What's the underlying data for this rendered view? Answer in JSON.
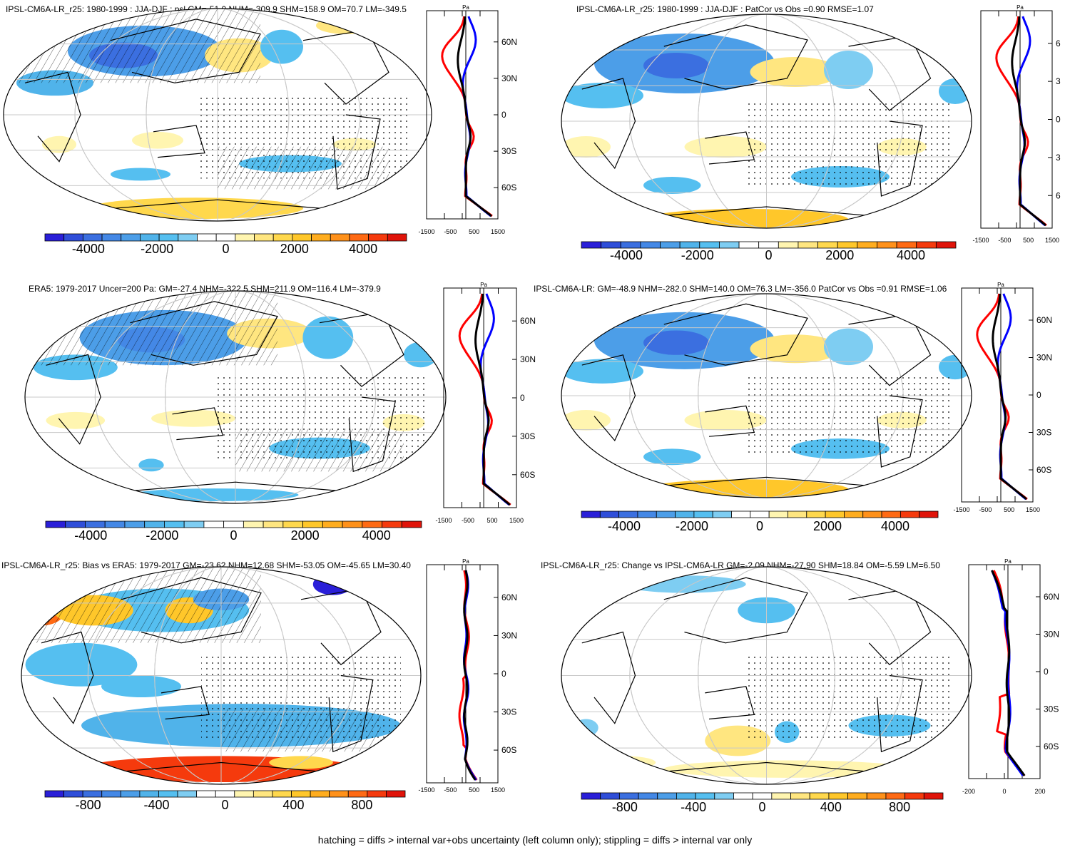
{
  "colors": {
    "neg": [
      "#2a1fd8",
      "#2f4ed9",
      "#3b6fe0",
      "#4488e6",
      "#4c9ee8",
      "#50b3ea",
      "#55bff0",
      "#7ecdf2"
    ],
    "pos": [
      "#fff5b0",
      "#ffe680",
      "#ffd84d",
      "#ffc72a",
      "#ffad1f",
      "#ff911a",
      "#ff6a14",
      "#f53a0d",
      "#e0140a"
    ],
    "nh_line": "#0000ff",
    "sh_line": "#ff0000",
    "global_line": "#000000"
  },
  "footer": "hatching = diffs > internal var+obs uncertainty (left column only); stippling = diffs > internal var only",
  "chart_data": [
    {
      "type": "map",
      "title": "IPSL-CM6A-LR_r25: 1980-1999 : JJA-DJF : psl GM=-51.0 NHM=-309.9 SHM=158.9 OM=70.7 LM=-349.5",
      "colorbar_ticks": [
        "-4000",
        "-2000",
        "0",
        "2000",
        "4000"
      ],
      "lat_labels": [
        "60N",
        "30N",
        "0",
        "30S",
        "60S"
      ],
      "profile_xticks": [
        "-1500",
        "-500",
        "500",
        "1500"
      ],
      "profile_unit": "Pa",
      "stats": {
        "GM": -51.0,
        "NHM": -309.9,
        "SHM": 158.9,
        "OM": 70.7,
        "LM": -349.5
      }
    },
    {
      "type": "map",
      "title": "IPSL-CM6A-LR_r25: 1980-1999 : JJA-DJF : PatCor vs Obs =0.90 RMSE=1.07",
      "colorbar_ticks": [
        "-4000",
        "-2000",
        "0",
        "2000",
        "4000"
      ],
      "lat_labels": [
        "6",
        "3",
        "0",
        "3",
        "6"
      ],
      "profile_xticks": [
        "-1500",
        "-500",
        "500",
        "1500"
      ],
      "profile_unit": "Pa",
      "stats": {
        "PatCor": 0.9,
        "RMSE": 1.07
      }
    },
    {
      "type": "map",
      "title": "ERA5: 1979-2017 Uncer=200 Pa: GM=-27.4 NHM=-322.5 SHM=211.9 OM=116.4 LM=-379.9",
      "colorbar_ticks": [
        "-4000",
        "-2000",
        "0",
        "2000",
        "4000"
      ],
      "lat_labels": [
        "60N",
        "30N",
        "0",
        "30S",
        "60S"
      ],
      "profile_xticks": [
        "-1500",
        "-500",
        "500",
        "1500"
      ],
      "profile_unit": "Pa",
      "stats": {
        "Uncer": 200,
        "GM": -27.4,
        "NHM": -322.5,
        "SHM": 211.9,
        "OM": 116.4,
        "LM": -379.9
      }
    },
    {
      "type": "map",
      "title": "IPSL-CM6A-LR: GM=-48.9 NHM=-282.0 SHM=140.0 OM=76.3 LM=-356.0 PatCor vs Obs =0.91 RMSE=1.06",
      "colorbar_ticks": [
        "-4000",
        "-2000",
        "0",
        "2000",
        "4000"
      ],
      "lat_labels": [
        "60N",
        "30N",
        "0",
        "30S",
        "60S"
      ],
      "profile_xticks": [
        "-1500",
        "-500",
        "500",
        "1500"
      ],
      "profile_unit": "Pa",
      "stats": {
        "GM": -48.9,
        "NHM": -282.0,
        "SHM": 140.0,
        "OM": 76.3,
        "LM": -356.0,
        "PatCor": 0.91,
        "RMSE": 1.06
      }
    },
    {
      "type": "map",
      "title": "IPSL-CM6A-LR_r25: Bias vs ERA5: 1979-2017 GM=-23.62 NHM=12.68 SHM=-53.05 OM=-45.65 LM=30.40",
      "colorbar_ticks": [
        "-800",
        "-400",
        "0",
        "400",
        "800"
      ],
      "lat_labels": [
        "60N",
        "30N",
        "0",
        "30S",
        "60S"
      ],
      "profile_xticks": [
        "-1500",
        "-500",
        "500",
        "1500"
      ],
      "profile_unit": "Pa",
      "stats": {
        "GM": -23.62,
        "NHM": 12.68,
        "SHM": -53.05,
        "OM": -45.65,
        "LM": 30.4
      }
    },
    {
      "type": "map",
      "title": "IPSL-CM6A-LR_r25: Change vs IPSL-CM6A-LR GM=-2.09 NHM=-27.90 SHM=18.84 OM=-5.59 LM=6.50",
      "colorbar_ticks": [
        "-800",
        "-400",
        "0",
        "400",
        "800"
      ],
      "lat_labels": [
        "60N",
        "30N",
        "0",
        "30S",
        "60S"
      ],
      "profile_xticks": [
        "-200",
        "0",
        "200"
      ],
      "profile_unit": "Pa",
      "stats": {
        "GM": -2.09,
        "NHM": -27.9,
        "SHM": 18.84,
        "OM": -5.59,
        "LM": 6.5
      }
    }
  ]
}
